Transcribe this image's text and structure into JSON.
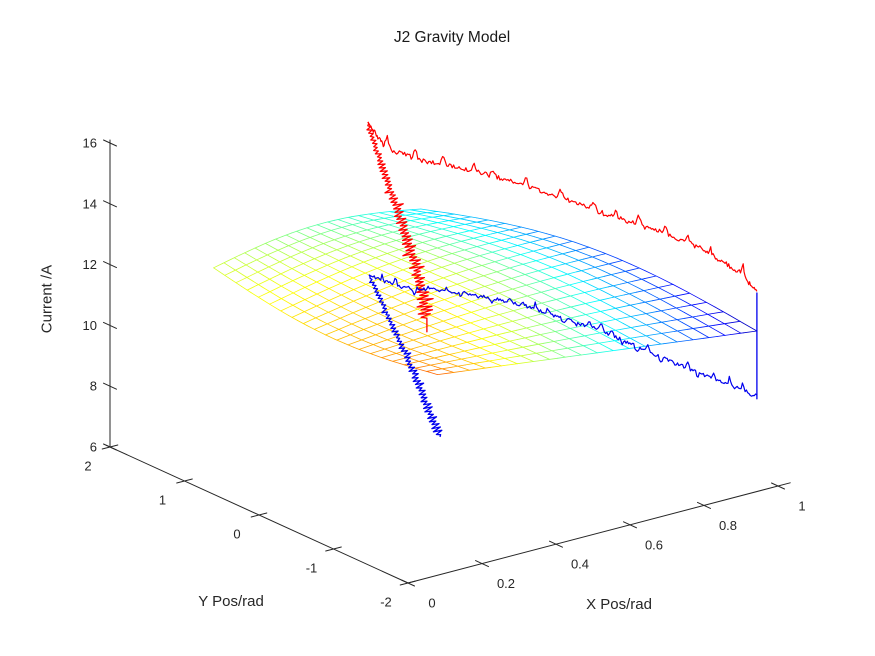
{
  "chart_data": {
    "type": "3d-mesh-surface-with-noisy-lines",
    "title": "J2 Gravity Model",
    "background": "#ffffff",
    "axes": {
      "x": {
        "label": "X Pos/rad",
        "range": [
          0,
          1
        ],
        "overshoot": 1.033,
        "ticks": [
          {
            "v": 0,
            "t": "0"
          },
          {
            "v": 0.2,
            "t": "0.2"
          },
          {
            "v": 0.4,
            "t": "0.4"
          },
          {
            "v": 0.6,
            "t": "0.6"
          },
          {
            "v": 0.8,
            "t": "0.8"
          },
          {
            "v": 1,
            "t": "1"
          }
        ]
      },
      "y": {
        "label": "Y Pos/rad",
        "range": [
          -2,
          2
        ],
        "overshoot": 2.05,
        "ticks": [
          {
            "v": 2,
            "t": "2"
          },
          {
            "v": 1,
            "t": "1"
          },
          {
            "v": 0,
            "t": "0"
          },
          {
            "v": -1,
            "t": "-1"
          },
          {
            "v": -2,
            "t": "-2"
          }
        ]
      },
      "z": {
        "label": "Current /A",
        "range": [
          6,
          16
        ],
        "overshoot": 16.1,
        "ticks": [
          {
            "v": 6,
            "t": "6"
          },
          {
            "v": 8,
            "t": "8"
          },
          {
            "v": 10,
            "t": "10"
          },
          {
            "v": 12,
            "t": "12"
          },
          {
            "v": 14,
            "t": "14"
          },
          {
            "v": 16,
            "t": "16"
          }
        ]
      }
    },
    "projection": {
      "origin": [
        408,
        583
      ],
      "base": [
        0,
        -2,
        6
      ],
      "ex": [
        370,
        -97
      ],
      "ey": [
        -74.5,
        -34
      ],
      "ez": [
        0,
        -30.4
      ]
    },
    "style": {
      "axis_color": "#262626",
      "axis_width": 1,
      "tick_font_px": 13,
      "x_tick_dash": [
        6.5,
        3.0
      ],
      "y_tick_dash": [
        7.8,
        -2.0
      ],
      "z_tick_dash": [
        6.5,
        3.0
      ],
      "x_label_offset": [
        24,
        20
      ],
      "y_label_offset": [
        -22,
        19
      ],
      "z_label_offset": [
        -13,
        4.5
      ],
      "mesh_line_width": 0.8,
      "series_line_width": 1.2
    },
    "surface": {
      "grid": 20,
      "colormap": "jet",
      "corners": {
        "L": [
          0.28,
          2.0,
          11.0
        ],
        "T": [
          0.84,
          2.0,
          11.15
        ],
        "B": [
          0.08,
          -2.0,
          12.6
        ],
        "R": [
          0.943,
          -2.0,
          11.28
        ]
      },
      "z_bulge": {
        "edge_LT": 0.45,
        "edge_LB": -0.45,
        "edge_TR": 0.75
      },
      "color_field": {
        "tL": 0.58,
        "tT": 0.35,
        "tB": 0.78,
        "tR": 0.06,
        "center_bump": 0.15
      }
    },
    "series": [
      {
        "name": "upper-current-trace",
        "color": "#ff0000",
        "seed": 101,
        "branches": [
          {
            "kind": "long",
            "fuzz": 2.4,
            "spikes": {
              "gap": [
                14,
                34
              ],
              "amp": [
                5,
                13
              ],
              "width": [
                5,
                9
              ],
              "up_bias": 0.85
            },
            "pts": [
              [
                0.697,
                2.0,
                14.47
              ],
              [
                0.708,
                1.824,
                13.77
              ],
              [
                0.73,
                1.464,
                13.71
              ],
              [
                0.768,
                0.848,
                13.88
              ],
              [
                0.806,
                0.232,
                13.86
              ],
              [
                0.844,
                -0.384,
                13.7
              ],
              [
                0.882,
                -1.004,
                13.62
              ],
              [
                0.907,
                -1.416,
                13.47
              ],
              [
                0.932,
                -1.824,
                13.06
              ],
              [
                0.943,
                -2.0,
                12.56
              ]
            ]
          },
          {
            "kind": "plunge",
            "amp0": 2.5,
            "amp1": 8.5,
            "pts": [
              [
                0.697,
                2.0,
                14.47
              ],
              [
                0.566,
                1.188,
                14.54
              ],
              [
                0.434,
                0.372,
                14.73
              ],
              [
                0.303,
                -0.44,
                14.9
              ],
              [
                0.193,
                -1.12,
                15.03
              ],
              [
                0.106,
                -1.66,
                14.92
              ],
              [
                0.051,
                -2.0,
                14.55
              ]
            ]
          }
        ],
        "segments": [
          {
            "name": "thin-tail",
            "p1": [
              0.051,
              -2.0,
              14.55
            ],
            "p2": [
              0.051,
              -2.0,
              14.1
            ]
          }
        ]
      },
      {
        "name": "lower-current-trace",
        "color": "#0000ee",
        "seed": 207,
        "branches": [
          {
            "kind": "long",
            "fuzz": 1.8,
            "spikes": {
              "gap": [
                5,
                14
              ],
              "amp": [
                3,
                8.5
              ],
              "width": [
                3,
                6
              ],
              "up_bias": 0.5
            },
            "pts": [
              [
                0.7,
                2.0,
                9.43
              ],
              [
                0.72,
                1.672,
                9.32
              ],
              [
                0.745,
                1.26,
                9.6
              ],
              [
                0.77,
                0.848,
                9.82
              ],
              [
                0.795,
                0.436,
                9.9
              ],
              [
                0.82,
                0.024,
                9.84
              ],
              [
                0.845,
                -0.388,
                9.82
              ],
              [
                0.87,
                -0.796,
                9.6
              ],
              [
                0.895,
                -1.208,
                9.43
              ],
              [
                0.92,
                -1.62,
                9.26
              ],
              [
                0.943,
                -2.0,
                9.17
              ]
            ]
          },
          {
            "kind": "plunge",
            "amp0": 2.0,
            "amp1": 5.0,
            "pts": [
              [
                0.7,
                2.0,
                9.43
              ],
              [
                0.579,
                1.212,
                9.7
              ],
              [
                0.458,
                0.424,
                9.98
              ],
              [
                0.328,
                -0.424,
                10.26
              ],
              [
                0.224,
                -1.1,
                10.36
              ],
              [
                0.147,
                -1.604,
                10.45
              ],
              [
                0.0865,
                -2.0,
                10.53
              ]
            ]
          }
        ],
        "segments": [
          {
            "name": "end-jump-vertical",
            "p1": [
              0.943,
              -2.0,
              12.53
            ],
            "p2": [
              0.943,
              -2.0,
              9.05
            ]
          }
        ]
      }
    ]
  }
}
